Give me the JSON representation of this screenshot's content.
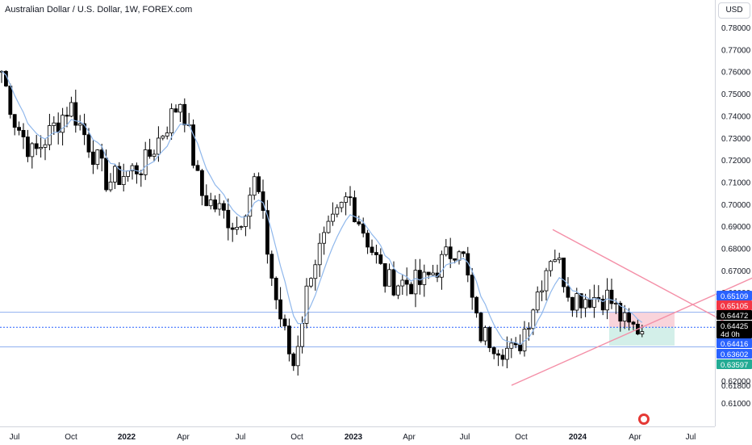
{
  "header": {
    "title": "Australian Dollar / U.S. Dollar, 1W, FOREX.com"
  },
  "price_axis": {
    "currency_label": "USD",
    "ticks": [
      "0.78000",
      "0.77000",
      "0.76000",
      "0.75000",
      "0.74000",
      "0.73000",
      "0.72000",
      "0.71000",
      "0.70000",
      "0.69000",
      "0.68000",
      "0.67000",
      "0.66000",
      "0.62000",
      "0.61800",
      "0.61000"
    ]
  },
  "time_axis": {
    "ticks": [
      "Jul",
      "Oct",
      "2022",
      "Apr",
      "Jul",
      "Oct",
      "2023",
      "Apr",
      "Jul",
      "Oct",
      "2024",
      "Apr",
      "Jul"
    ]
  },
  "price_labels": [
    {
      "text": "0.65109",
      "color": "#2962ff"
    },
    {
      "text": "0.65105",
      "color": "#f23645"
    },
    {
      "text": "0.64472",
      "color": "#000000"
    },
    {
      "text": "0.64425",
      "color": "#000000"
    },
    {
      "text": "4d 0h",
      "color": "#000000"
    },
    {
      "text": "0.64416",
      "color": "#2962ff"
    },
    {
      "text": "0.63602",
      "color": "#2962ff"
    },
    {
      "text": "0.63597",
      "color": "#22ab94"
    }
  ],
  "colors": {
    "bull": "#ffffff",
    "bear": "#000000",
    "ma_line": "#90b8ec",
    "hline": "#8fb0f0",
    "trend": "#f48fa7",
    "stop_zone": "#f8c9d2",
    "target_zone": "#c8ebe4"
  },
  "chart_data": {
    "type": "candlestick",
    "title": "Australian Dollar / U.S. Dollar, 1W, FOREX.com",
    "ylim": [
      0.6058,
      0.7863
    ],
    "y_unit": "USD",
    "grid": false,
    "approximate_close_path": [
      {
        "t": "2021-06",
        "close": 0.77
      },
      {
        "t": "2021-07",
        "close": 0.738
      },
      {
        "t": "2021-08",
        "close": 0.722
      },
      {
        "t": "2021-10",
        "close": 0.745
      },
      {
        "t": "2021-12",
        "close": 0.71
      },
      {
        "t": "2022-02",
        "close": 0.718
      },
      {
        "t": "2022-04",
        "close": 0.748
      },
      {
        "t": "2022-05",
        "close": 0.705
      },
      {
        "t": "2022-07",
        "close": 0.69
      },
      {
        "t": "2022-08",
        "close": 0.712
      },
      {
        "t": "2022-09",
        "close": 0.66
      },
      {
        "t": "2022-10",
        "close": 0.626
      },
      {
        "t": "2022-11",
        "close": 0.672
      },
      {
        "t": "2023-01",
        "close": 0.704
      },
      {
        "t": "2023-03",
        "close": 0.665
      },
      {
        "t": "2023-05",
        "close": 0.664
      },
      {
        "t": "2023-07",
        "close": 0.683
      },
      {
        "t": "2023-08",
        "close": 0.642
      },
      {
        "t": "2023-10",
        "close": 0.632
      },
      {
        "t": "2023-12",
        "close": 0.68
      },
      {
        "t": "2024-01",
        "close": 0.658
      },
      {
        "t": "2024-03",
        "close": 0.658
      },
      {
        "t": "2024-04",
        "close": 0.644
      }
    ],
    "horizontal_levels": [
      0.65109,
      0.64416,
      0.64425
    ],
    "trend_lines": [
      {
        "name": "upper-channel",
        "from": {
          "t": "2023-12",
          "price": 0.6885
        },
        "to": {
          "t": "2024-05",
          "price": 0.6318
        }
      },
      {
        "name": "lower-channel",
        "from": {
          "t": "2023-10",
          "price": 0.618
        },
        "to": {
          "t": "2024-05",
          "price": 0.6735
        }
      }
    ],
    "position_tool": {
      "entry": 0.64425,
      "stop": 0.65105,
      "target": 0.63597
    }
  }
}
